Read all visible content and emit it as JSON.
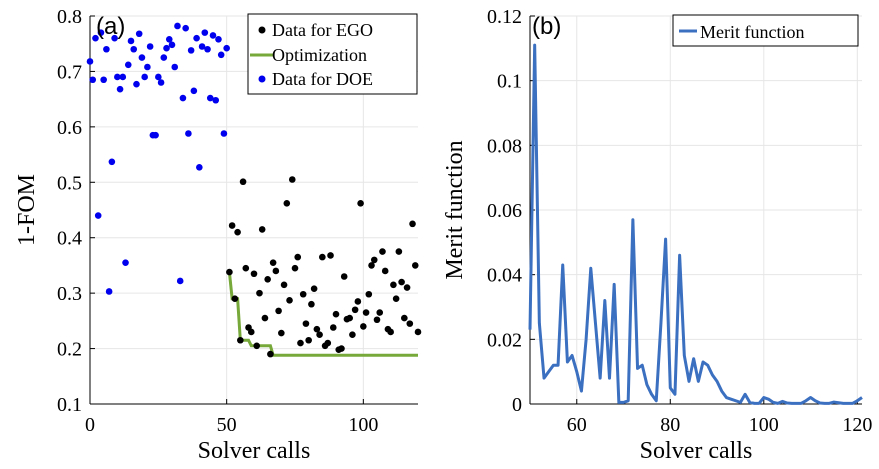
{
  "chart_data": [
    {
      "type": "scatter",
      "panel_label": "(a)",
      "xlabel": "Solver calls",
      "ylabel": "1-FOM",
      "xlim": [
        0,
        120
      ],
      "ylim": [
        0.1,
        0.8
      ],
      "xticks": [
        0,
        50,
        100
      ],
      "yticks": [
        0.1,
        0.2,
        0.3,
        0.4,
        0.5,
        0.6,
        0.7,
        0.8
      ],
      "grid": true,
      "legend_position": "top-right",
      "series": [
        {
          "name": "Data for EGO",
          "kind": "scatter",
          "color": "#000000",
          "points": [
            [
              51,
              0.338
            ],
            [
              52,
              0.422
            ],
            [
              53,
              0.29
            ],
            [
              54,
              0.41
            ],
            [
              55,
              0.215
            ],
            [
              56,
              0.501
            ],
            [
              57,
              0.345
            ],
            [
              58,
              0.238
            ],
            [
              59,
              0.23
            ],
            [
              60,
              0.335
            ],
            [
              61,
              0.205
            ],
            [
              62,
              0.3
            ],
            [
              63,
              0.415
            ],
            [
              64,
              0.255
            ],
            [
              65,
              0.325
            ],
            [
              66,
              0.19
            ],
            [
              67,
              0.355
            ],
            [
              68,
              0.34
            ],
            [
              69,
              0.268
            ],
            [
              70,
              0.228
            ],
            [
              71,
              0.315
            ],
            [
              72,
              0.462
            ],
            [
              73,
              0.287
            ],
            [
              74,
              0.505
            ],
            [
              75,
              0.345
            ],
            [
              76,
              0.365
            ],
            [
              77,
              0.21
            ],
            [
              78,
              0.298
            ],
            [
              79,
              0.245
            ],
            [
              80,
              0.215
            ],
            [
              81,
              0.28
            ],
            [
              82,
              0.308
            ],
            [
              83,
              0.235
            ],
            [
              84,
              0.225
            ],
            [
              85,
              0.365
            ],
            [
              86,
              0.205
            ],
            [
              87,
              0.21
            ],
            [
              88,
              0.368
            ],
            [
              89,
              0.238
            ],
            [
              90,
              0.262
            ],
            [
              91,
              0.198
            ],
            [
              92,
              0.2
            ],
            [
              93,
              0.33
            ],
            [
              94,
              0.253
            ],
            [
              95,
              0.255
            ],
            [
              96,
              0.225
            ],
            [
              97,
              0.27
            ],
            [
              98,
              0.285
            ],
            [
              99,
              0.462
            ],
            [
              100,
              0.24
            ],
            [
              101,
              0.265
            ],
            [
              102,
              0.298
            ],
            [
              103,
              0.35
            ],
            [
              104,
              0.36
            ],
            [
              105,
              0.252
            ],
            [
              106,
              0.265
            ],
            [
              107,
              0.375
            ],
            [
              108,
              0.34
            ],
            [
              109,
              0.235
            ],
            [
              110,
              0.23
            ],
            [
              111,
              0.315
            ],
            [
              112,
              0.29
            ],
            [
              113,
              0.375
            ],
            [
              114,
              0.32
            ],
            [
              115,
              0.255
            ],
            [
              116,
              0.31
            ],
            [
              117,
              0.245
            ],
            [
              118,
              0.425
            ],
            [
              119,
              0.35
            ],
            [
              120,
              0.23
            ]
          ]
        },
        {
          "name": "Optimization",
          "kind": "line",
          "color": "#77a83a",
          "points": [
            [
              51,
              0.338
            ],
            [
              52,
              0.29
            ],
            [
              54,
              0.29
            ],
            [
              55,
              0.215
            ],
            [
              58,
              0.215
            ],
            [
              59,
              0.205
            ],
            [
              61,
              0.205
            ],
            [
              62,
              0.205
            ],
            [
              66,
              0.205
            ],
            [
              67,
              0.188
            ],
            [
              120,
              0.188
            ]
          ]
        },
        {
          "name": "Data for DOE",
          "kind": "scatter",
          "color": "#0000ee",
          "points": [
            [
              0,
              0.718
            ],
            [
              1,
              0.685
            ],
            [
              2,
              0.76
            ],
            [
              3,
              0.44
            ],
            [
              4,
              0.77
            ],
            [
              5,
              0.685
            ],
            [
              6,
              0.74
            ],
            [
              7,
              0.303
            ],
            [
              8,
              0.537
            ],
            [
              9,
              0.76
            ],
            [
              10,
              0.69
            ],
            [
              11,
              0.668
            ],
            [
              12,
              0.69
            ],
            [
              13,
              0.355
            ],
            [
              14,
              0.712
            ],
            [
              15,
              0.755
            ],
            [
              16,
              0.74
            ],
            [
              17,
              0.677
            ],
            [
              18,
              0.768
            ],
            [
              19,
              0.725
            ],
            [
              20,
              0.69
            ],
            [
              21,
              0.708
            ],
            [
              22,
              0.745
            ],
            [
              23,
              0.585
            ],
            [
              24,
              0.585
            ],
            [
              25,
              0.69
            ],
            [
              26,
              0.68
            ],
            [
              27,
              0.725
            ],
            [
              28,
              0.742
            ],
            [
              29,
              0.758
            ],
            [
              30,
              0.748
            ],
            [
              31,
              0.708
            ],
            [
              32,
              0.782
            ],
            [
              33,
              0.322
            ],
            [
              34,
              0.652
            ],
            [
              35,
              0.778
            ],
            [
              36,
              0.588
            ],
            [
              37,
              0.738
            ],
            [
              38,
              0.665
            ],
            [
              39,
              0.76
            ],
            [
              40,
              0.527
            ],
            [
              41,
              0.745
            ],
            [
              42,
              0.77
            ],
            [
              43,
              0.74
            ],
            [
              44,
              0.652
            ],
            [
              45,
              0.765
            ],
            [
              46,
              0.648
            ],
            [
              47,
              0.758
            ],
            [
              48,
              0.73
            ],
            [
              49,
              0.588
            ],
            [
              50,
              0.742
            ]
          ]
        }
      ]
    },
    {
      "type": "line",
      "panel_label": "(b)",
      "xlabel": "Solver calls",
      "ylabel": "Merit function",
      "xlim": [
        50,
        121
      ],
      "ylim": [
        0,
        0.12
      ],
      "xticks": [
        60,
        80,
        100,
        120
      ],
      "yticks": [
        0,
        0.02,
        0.04,
        0.06,
        0.08,
        0.1,
        0.12
      ],
      "ytick_labels": [
        "0",
        "0.02",
        "0.04",
        "0.06",
        "0.08",
        "0.1",
        "0.12"
      ],
      "grid": true,
      "legend_position": "top-right",
      "series": [
        {
          "name": "Merit function",
          "color": "#3b6fc0",
          "x": [
            50,
            51,
            52,
            53,
            54,
            55,
            56,
            57,
            58,
            59,
            60,
            61,
            62,
            63,
            64,
            65,
            66,
            67,
            68,
            69,
            70,
            71,
            72,
            73,
            74,
            75,
            76,
            77,
            78,
            79,
            80,
            81,
            82,
            83,
            84,
            85,
            86,
            87,
            88,
            89,
            90,
            91,
            92,
            93,
            94,
            95,
            96,
            97,
            98,
            99,
            100,
            101,
            102,
            103,
            104,
            105,
            106,
            107,
            108,
            109,
            110,
            111,
            112,
            113,
            114,
            115,
            116,
            117,
            118,
            119,
            120,
            121
          ],
          "y": [
            0.023,
            0.111,
            0.025,
            0.008,
            0.01,
            0.012,
            0.012,
            0.043,
            0.013,
            0.015,
            0.01,
            0.004,
            0.02,
            0.042,
            0.025,
            0.008,
            0.032,
            0.008,
            0.037,
            0.0005,
            0.0005,
            0.001,
            0.057,
            0.011,
            0.012,
            0.006,
            0.003,
            0.001,
            0.025,
            0.051,
            0.005,
            0.003,
            0.046,
            0.015,
            0.007,
            0.014,
            0.007,
            0.013,
            0.012,
            0.009,
            0.007,
            0.004,
            0.002,
            0.0015,
            0.001,
            0.0005,
            0.003,
            0.0005,
            0.0002,
            0.0002,
            0.002,
            0.0015,
            0.0005,
            0.0002,
            0.0008,
            0.0003,
            0.0002,
            0.0002,
            0.0002,
            0.001,
            0.002,
            0.001,
            0.0003,
            0.0002,
            0.0002,
            0.0006,
            0.0004,
            0.0002,
            0.0002,
            0.0002,
            0.001,
            0.002
          ]
        }
      ]
    }
  ]
}
